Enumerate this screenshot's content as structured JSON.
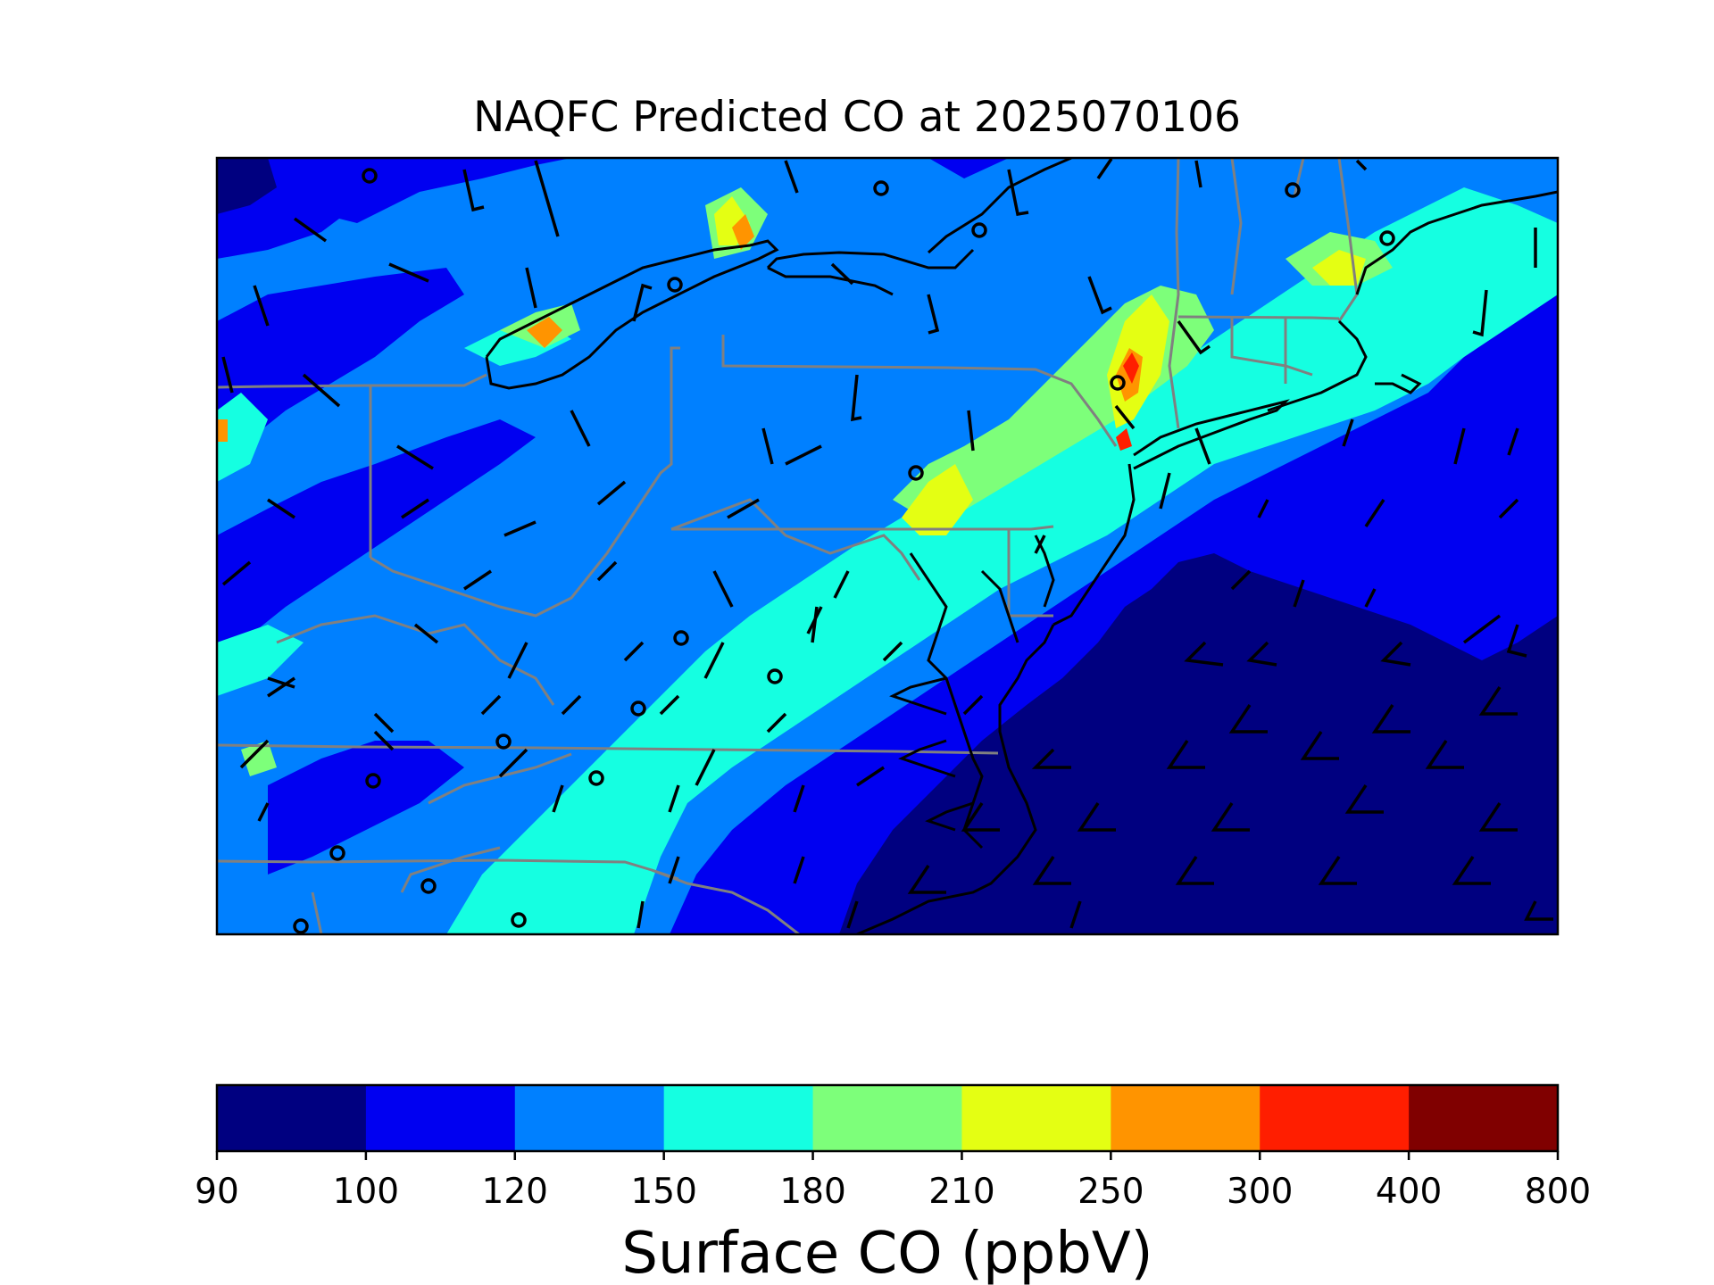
{
  "title": "NAQFC Predicted CO at 2025070106",
  "colorbar": {
    "label": "Surface CO (ppbV)",
    "ticks": [
      "90",
      "100",
      "120",
      "150",
      "180",
      "210",
      "250",
      "300",
      "400",
      "800"
    ],
    "bins": [
      {
        "min": 90,
        "max": 100,
        "color": "#000080"
      },
      {
        "min": 100,
        "max": 120,
        "color": "#0000f1"
      },
      {
        "min": 120,
        "max": 150,
        "color": "#0080ff"
      },
      {
        "min": 150,
        "max": 180,
        "color": "#15ffe1"
      },
      {
        "min": 180,
        "max": 210,
        "color": "#7dff7a"
      },
      {
        "min": 210,
        "max": 250,
        "color": "#e4ff13"
      },
      {
        "min": 250,
        "max": 300,
        "color": "#ff9400"
      },
      {
        "min": 300,
        "max": 400,
        "color": "#ff1e00"
      },
      {
        "min": 400,
        "max": 800,
        "color": "#800000"
      }
    ]
  },
  "map": {
    "region": "Northeastern United States",
    "variable": "Surface CO",
    "units": "ppbV",
    "layers": [
      "co-field",
      "state-borders",
      "coastlines",
      "wind-barbs",
      "calm-wind-circles"
    ],
    "colors": {
      "state_border": "#808080",
      "coastline": "#000000",
      "barb": "#000000"
    }
  }
}
